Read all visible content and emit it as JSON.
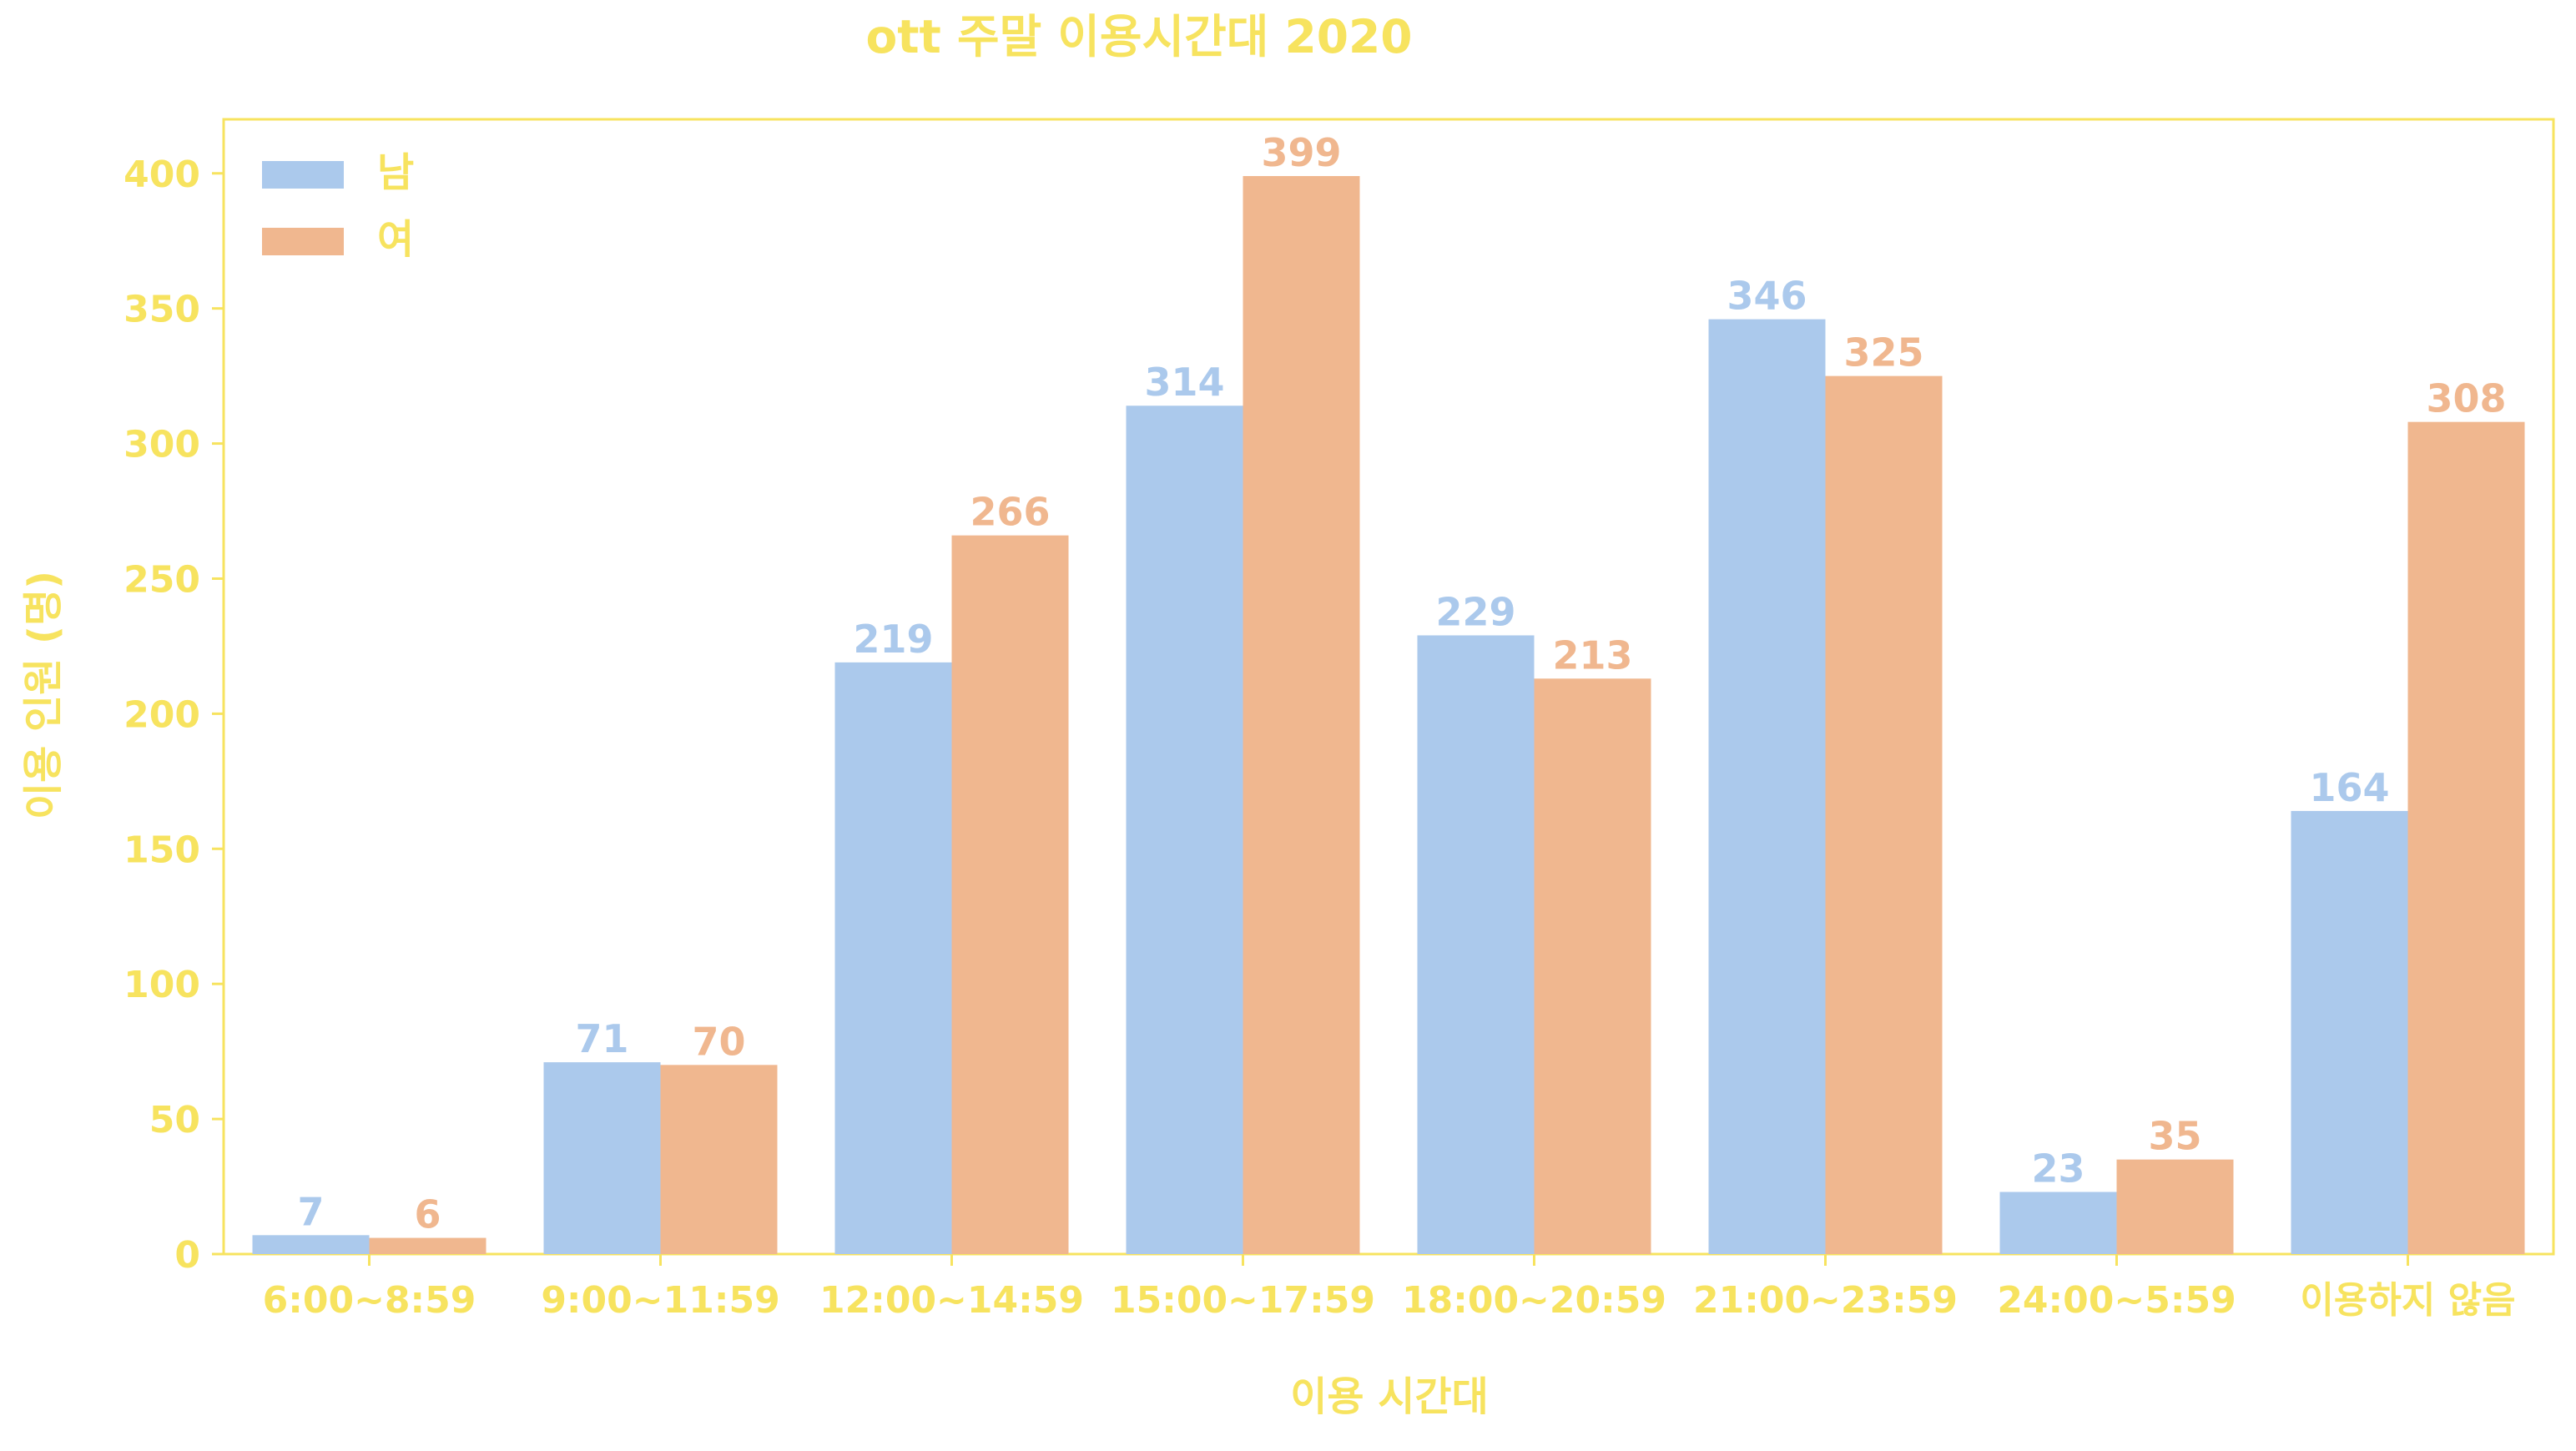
{
  "colors": {
    "text": "#F7E35F",
    "frame": "#F7E35F",
    "male": "#ABC9EC",
    "female": "#F0B78F"
  },
  "chart_data": {
    "type": "bar",
    "title": "ott 주말 이용시간대 2020",
    "xlabel": "이용 시간대",
    "ylabel": "이용 인원 (명)",
    "ylim": [
      0,
      420
    ],
    "yticks": [
      0,
      50,
      100,
      150,
      200,
      250,
      300,
      350,
      400
    ],
    "grid": false,
    "legend_position": "top-left",
    "categories": [
      "6:00~8:59",
      "9:00~11:59",
      "12:00~14:59",
      "15:00~17:59",
      "18:00~20:59",
      "21:00~23:59",
      "24:00~5:59",
      "이용하지 않음"
    ],
    "series": [
      {
        "name": "남",
        "color": "#ABC9EC",
        "values": [
          7,
          71,
          219,
          314,
          229,
          346,
          23,
          164
        ]
      },
      {
        "name": "여",
        "color": "#F0B78F",
        "values": [
          6,
          70,
          266,
          399,
          213,
          325,
          35,
          308
        ]
      }
    ]
  }
}
